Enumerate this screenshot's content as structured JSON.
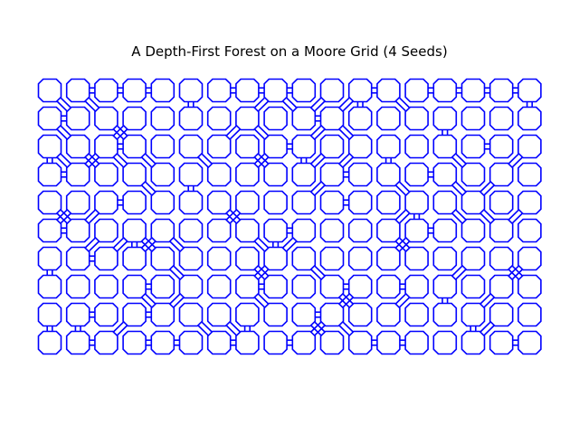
{
  "title": "A Depth-First Forest on a Moore Grid (4 Seeds)",
  "colors": {
    "line": "#0000ff",
    "background": "#ffffff",
    "text": "#000000"
  },
  "maze": {
    "cols": 18,
    "rows": 10,
    "h_links": [
      [
        0,
        1,
        1,
        1,
        0,
        0,
        1,
        1,
        1,
        0,
        0,
        1,
        0,
        1,
        1,
        1,
        1
      ],
      [
        1,
        0,
        0,
        0,
        0,
        0,
        0,
        0,
        0,
        1,
        0,
        0,
        0,
        0,
        0,
        0,
        0
      ],
      [
        0,
        0,
        1,
        0,
        0,
        0,
        0,
        0,
        1,
        0,
        0,
        0,
        0,
        0,
        0,
        1,
        0
      ],
      [
        1,
        0,
        0,
        0,
        0,
        0,
        0,
        0,
        0,
        0,
        1,
        0,
        0,
        1,
        0,
        0,
        0
      ],
      [
        0,
        0,
        1,
        0,
        0,
        0,
        0,
        0,
        0,
        0,
        1,
        0,
        0,
        0,
        0,
        0,
        0
      ],
      [
        1,
        0,
        0,
        0,
        0,
        0,
        0,
        0,
        1,
        0,
        0,
        0,
        0,
        1,
        0,
        0,
        0
      ],
      [
        0,
        1,
        0,
        0,
        0,
        0,
        0,
        0,
        0,
        0,
        0,
        0,
        0,
        0,
        0,
        0,
        0
      ],
      [
        0,
        0,
        0,
        1,
        0,
        0,
        0,
        1,
        0,
        0,
        1,
        0,
        1,
        0,
        0,
        0,
        0
      ],
      [
        0,
        1,
        0,
        1,
        0,
        0,
        0,
        0,
        0,
        1,
        0,
        0,
        0,
        0,
        0,
        0,
        0
      ],
      [
        0,
        1,
        0,
        1,
        1,
        0,
        1,
        0,
        1,
        0,
        0,
        1,
        1,
        0,
        0,
        0,
        1
      ]
    ],
    "v_links": [
      [
        0,
        0,
        0,
        0,
        0,
        1,
        0,
        0,
        0,
        0,
        0,
        1,
        0,
        0,
        0,
        0,
        0,
        1
      ],
      [
        0,
        0,
        0,
        0,
        0,
        0,
        0,
        0,
        0,
        0,
        0,
        0,
        0,
        0,
        1,
        0,
        0,
        0
      ],
      [
        1,
        0,
        0,
        0,
        0,
        0,
        0,
        0,
        0,
        1,
        0,
        0,
        1,
        0,
        0,
        0,
        0,
        0
      ],
      [
        0,
        0,
        0,
        0,
        0,
        1,
        0,
        0,
        0,
        0,
        0,
        0,
        0,
        0,
        0,
        0,
        0,
        0
      ],
      [
        0,
        0,
        0,
        0,
        0,
        0,
        0,
        0,
        0,
        0,
        0,
        0,
        0,
        1,
        0,
        0,
        0,
        0
      ],
      [
        0,
        0,
        0,
        1,
        0,
        0,
        0,
        0,
        1,
        0,
        0,
        0,
        0,
        0,
        0,
        0,
        0,
        0
      ],
      [
        1,
        0,
        0,
        0,
        0,
        0,
        0,
        0,
        0,
        0,
        0,
        0,
        0,
        0,
        0,
        0,
        0,
        0
      ],
      [
        0,
        0,
        0,
        0,
        0,
        0,
        0,
        0,
        0,
        0,
        0,
        0,
        0,
        0,
        1,
        0,
        0,
        0
      ],
      [
        1,
        1,
        0,
        0,
        0,
        0,
        0,
        1,
        0,
        0,
        0,
        0,
        0,
        0,
        0,
        1,
        0,
        0
      ]
    ],
    "diag_down": [
      [
        1,
        1,
        0,
        0,
        0,
        0,
        0,
        0,
        1,
        0,
        0,
        0,
        1,
        0,
        0,
        0,
        0
      ],
      [
        1,
        0,
        1,
        0,
        0,
        0,
        0,
        1,
        0,
        0,
        1,
        0,
        0,
        0,
        0,
        0,
        0
      ],
      [
        1,
        1,
        1,
        1,
        0,
        1,
        0,
        1,
        0,
        0,
        0,
        0,
        0,
        0,
        1,
        0,
        0
      ],
      [
        0,
        0,
        0,
        1,
        0,
        0,
        0,
        0,
        0,
        0,
        0,
        0,
        1,
        0,
        1,
        0,
        0
      ],
      [
        1,
        0,
        0,
        0,
        0,
        0,
        1,
        0,
        0,
        0,
        0,
        0,
        0,
        0,
        1,
        1,
        0
      ],
      [
        0,
        0,
        0,
        1,
        1,
        0,
        0,
        1,
        0,
        0,
        0,
        0,
        1,
        0,
        0,
        0,
        0
      ],
      [
        0,
        0,
        0,
        0,
        1,
        0,
        0,
        1,
        0,
        1,
        0,
        0,
        0,
        0,
        0,
        0,
        1
      ],
      [
        0,
        0,
        0,
        1,
        0,
        0,
        0,
        1,
        0,
        0,
        1,
        0,
        0,
        0,
        0,
        0,
        0
      ],
      [
        0,
        0,
        0,
        0,
        0,
        1,
        1,
        0,
        0,
        1,
        1,
        0,
        0,
        0,
        0,
        0,
        0
      ]
    ],
    "diag_up": [
      [
        0,
        0,
        0,
        0,
        0,
        0,
        0,
        1,
        0,
        1,
        1,
        0,
        0,
        0,
        0,
        0,
        0
      ],
      [
        0,
        0,
        1,
        0,
        0,
        0,
        1,
        0,
        0,
        1,
        0,
        0,
        0,
        0,
        0,
        0,
        0
      ],
      [
        0,
        1,
        0,
        0,
        0,
        0,
        0,
        1,
        0,
        1,
        1,
        0,
        0,
        0,
        0,
        0,
        1
      ],
      [
        0,
        0,
        0,
        0,
        0,
        0,
        0,
        0,
        0,
        1,
        0,
        0,
        0,
        0,
        0,
        1,
        0
      ],
      [
        1,
        1,
        0,
        0,
        0,
        0,
        1,
        0,
        0,
        0,
        0,
        0,
        1,
        0,
        0,
        0,
        1
      ],
      [
        0,
        1,
        1,
        1,
        0,
        0,
        0,
        0,
        1,
        0,
        0,
        0,
        1,
        0,
        0,
        0,
        0
      ],
      [
        0,
        0,
        0,
        0,
        0,
        0,
        0,
        1,
        0,
        0,
        0,
        0,
        0,
        0,
        1,
        0,
        1
      ],
      [
        0,
        0,
        0,
        0,
        1,
        0,
        0,
        0,
        0,
        0,
        1,
        0,
        1,
        0,
        0,
        1,
        0
      ],
      [
        0,
        0,
        1,
        0,
        0,
        0,
        0,
        0,
        0,
        1,
        0,
        0,
        0,
        0,
        0,
        1,
        0
      ]
    ]
  }
}
